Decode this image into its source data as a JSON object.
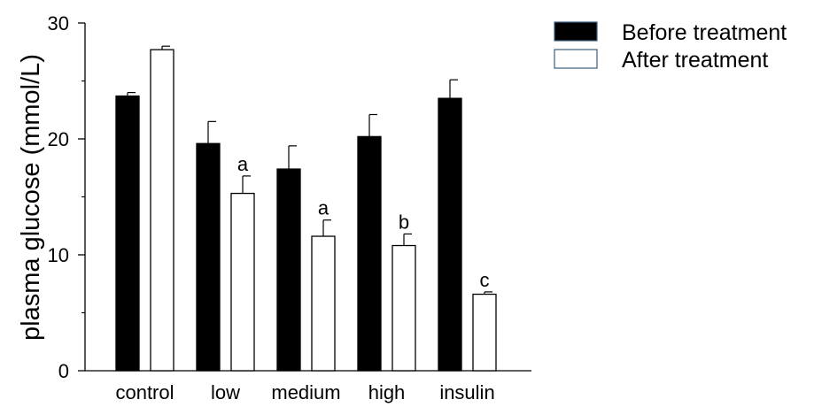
{
  "chart_data": {
    "type": "bar",
    "title": "",
    "xlabel": "",
    "ylabel": "plasma glucose (mmol/L)",
    "categories": [
      "control",
      "low",
      "medium",
      "high",
      "insulin"
    ],
    "ylim": [
      0,
      30
    ],
    "yticks": [
      0,
      10,
      20,
      30
    ],
    "grid": false,
    "legend_position": "top-right",
    "series": [
      {
        "name": "Before treatment",
        "fill": "#000000",
        "values": [
          23.7,
          19.6,
          17.4,
          20.2,
          23.5
        ],
        "errors": [
          0.3,
          1.9,
          2.0,
          1.9,
          1.6
        ],
        "annotations": [
          "",
          "",
          "",
          "",
          ""
        ]
      },
      {
        "name": "After treatment",
        "fill": "#ffffff",
        "values": [
          27.7,
          15.3,
          11.6,
          10.8,
          6.6
        ],
        "errors": [
          0.3,
          1.5,
          1.4,
          1.0,
          0.2
        ],
        "annotations": [
          "",
          "a",
          "a",
          "b",
          "c"
        ]
      }
    ]
  }
}
